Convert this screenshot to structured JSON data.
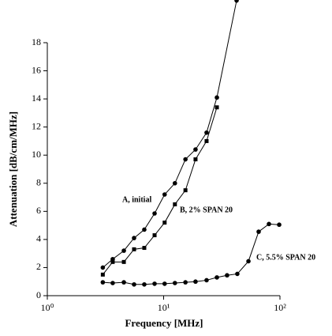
{
  "chart_data": {
    "type": "line",
    "xlabel": "Frequency [MHz]",
    "ylabel": "Attenuation [dB/cm/MHz]",
    "xscale": "log",
    "xlim": [
      1,
      100
    ],
    "xticks": [
      {
        "value": 1,
        "label": "10⁰"
      },
      {
        "value": 10,
        "label": "10¹"
      },
      {
        "value": 100,
        "label": "10²"
      }
    ],
    "ylim": [
      0,
      18
    ],
    "yticks": [
      0,
      2,
      4,
      6,
      8,
      10,
      12,
      14,
      16,
      18
    ],
    "grid": false,
    "series": [
      {
        "name": "A, initial",
        "color": "#000000",
        "marker": "circle",
        "x": [
          3,
          3.65,
          4.55,
          5.57,
          6.82,
          8.36,
          10.2,
          12.5,
          15.4,
          18.8,
          23.4,
          28.7,
          42.4
        ],
        "values": [
          2.0,
          2.6,
          3.2,
          4.1,
          4.7,
          5.85,
          7.2,
          8.0,
          9.7,
          10.4,
          11.6,
          14.1,
          21
        ]
      },
      {
        "name": "B, 2% SPAN 20",
        "color": "#000000",
        "marker": "square",
        "x": [
          3,
          3.65,
          4.55,
          5.57,
          6.82,
          8.36,
          10.2,
          12.5,
          15.4,
          18.8,
          23.4,
          28.7
        ],
        "values": [
          1.5,
          2.4,
          2.4,
          3.3,
          3.4,
          4.3,
          5.2,
          6.5,
          7.5,
          9.7,
          11.0,
          13.4
        ]
      },
      {
        "name": "C, 5.5% SPAN 20",
        "color": "#000000",
        "marker": "circle",
        "x": [
          3,
          3.65,
          4.55,
          5.57,
          6.82,
          8.36,
          10.2,
          12.5,
          15.4,
          18.8,
          23.4,
          28.7,
          35.1,
          43,
          53.6,
          65.6,
          80.4,
          98.5
        ],
        "values": [
          0.95,
          0.9,
          0.95,
          0.8,
          0.8,
          0.85,
          0.85,
          0.9,
          0.95,
          1.0,
          1.1,
          1.3,
          1.45,
          1.55,
          2.45,
          4.55,
          5.1,
          5.05
        ]
      }
    ]
  }
}
